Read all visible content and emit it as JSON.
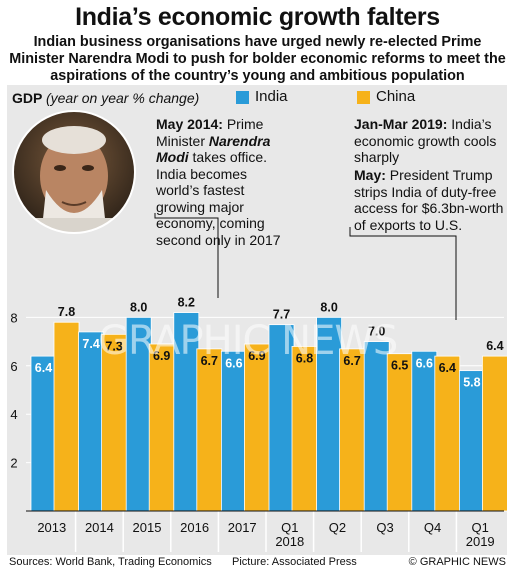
{
  "title": "India’s economic growth falters",
  "subtitle": "Indian business organisations have urged newly re-elected Prime Minister Narendra Modi to push for bolder economic reforms to meet the aspirations of the country’s young and ambitious population",
  "gdp_label": "GDP",
  "gdp_sublabel": "(year on year % change)",
  "annotations": {
    "may2014_head": "May 2014:",
    "may2014_text1": "Prime Minister",
    "may2014_name": "Narendra Modi",
    "may2014_text2": "takes office. India becomes world’s fastest growing major economy, coming second only in 2017",
    "janmar_head": "Jan-Mar 2019:",
    "janmar_text": "India’s economic growth cools sharply",
    "may_head": "May:",
    "may_text": "President Trump strips India of duty-free access for $6.3bn-worth of exports to U.S."
  },
  "watermark": "GRAPHIC NEWS",
  "footer": {
    "sources": "Sources: World Bank, Trading Economics",
    "picture": "Picture: Associated Press",
    "copyright": "© GRAPHIC NEWS"
  },
  "colors": {
    "india": "#2a9bd8",
    "china": "#f6b21a",
    "panel": "#e8e8e8"
  },
  "chart_data": {
    "type": "bar",
    "categories": [
      "2013",
      "2014",
      "2015",
      "2016",
      "2017",
      "Q1 2018",
      "Q2",
      "Q3",
      "Q4",
      "Q1 2019"
    ],
    "category_lines": [
      [
        "2013"
      ],
      [
        "2014"
      ],
      [
        "2015"
      ],
      [
        "2016"
      ],
      [
        "2017"
      ],
      [
        "Q1",
        "2018"
      ],
      [
        "Q2"
      ],
      [
        "Q3"
      ],
      [
        "Q4"
      ],
      [
        "Q1",
        "2019"
      ]
    ],
    "series": [
      {
        "name": "India",
        "color": "#2a9bd8",
        "values": [
          6.4,
          7.4,
          8.0,
          8.2,
          6.6,
          7.7,
          8.0,
          7.0,
          6.6,
          5.8
        ]
      },
      {
        "name": "China",
        "color": "#f6b21a",
        "values": [
          7.8,
          7.3,
          6.9,
          6.7,
          6.9,
          6.8,
          6.7,
          6.5,
          6.4,
          6.4
        ]
      }
    ],
    "labels": {
      "India": [
        "6.4",
        "7.4",
        "8.0",
        "8.2",
        "6.6",
        "7.7",
        "8.0",
        "7.0",
        "6.6",
        "5.8"
      ],
      "China": [
        "7.8",
        "7.3",
        "6.9",
        "6.7",
        "6.9",
        "6.8",
        "6.7",
        "6.5",
        "6.4",
        "6.4"
      ]
    },
    "yticks": [
      2,
      4,
      6,
      8
    ],
    "ylim": [
      0,
      8.7
    ],
    "legend_position": "top"
  }
}
